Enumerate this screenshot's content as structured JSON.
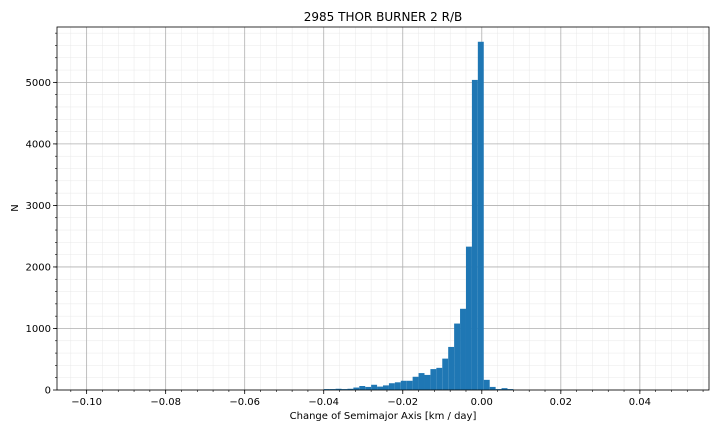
{
  "chart_data": {
    "type": "bar",
    "title": "2985 THOR BURNER 2 R/B",
    "xlabel": "Change of Semimajor Axis [km / day]",
    "ylabel": "N",
    "xlim": [
      -0.1075,
      0.0575
    ],
    "ylim": [
      0,
      5900
    ],
    "grid": true,
    "xticks": [
      -0.1,
      -0.08,
      -0.06,
      -0.04,
      -0.02,
      0.0,
      0.02,
      0.04
    ],
    "xtick_labels": [
      "−0.10",
      "−0.08",
      "−0.06",
      "−0.04",
      "−0.02",
      "0.00",
      "0.02",
      "0.04"
    ],
    "yticks": [
      0,
      1000,
      2000,
      3000,
      4000,
      5000
    ],
    "ytick_labels": [
      "0",
      "1000",
      "2000",
      "3000",
      "4000",
      "5000"
    ],
    "bin_width": 0.0015,
    "bins": [
      {
        "x0": -0.04,
        "value": 15
      },
      {
        "x0": -0.0385,
        "value": 15
      },
      {
        "x0": -0.037,
        "value": 20
      },
      {
        "x0": -0.0355,
        "value": 15
      },
      {
        "x0": -0.034,
        "value": 20
      },
      {
        "x0": -0.0325,
        "value": 40
      },
      {
        "x0": -0.031,
        "value": 65
      },
      {
        "x0": -0.0295,
        "value": 50
      },
      {
        "x0": -0.028,
        "value": 85
      },
      {
        "x0": -0.0265,
        "value": 55
      },
      {
        "x0": -0.025,
        "value": 75
      },
      {
        "x0": -0.0235,
        "value": 110
      },
      {
        "x0": -0.022,
        "value": 125
      },
      {
        "x0": -0.0205,
        "value": 150
      },
      {
        "x0": -0.019,
        "value": 150
      },
      {
        "x0": -0.0175,
        "value": 215
      },
      {
        "x0": -0.016,
        "value": 275
      },
      {
        "x0": -0.0145,
        "value": 245
      },
      {
        "x0": -0.013,
        "value": 340
      },
      {
        "x0": -0.0115,
        "value": 360
      },
      {
        "x0": -0.01,
        "value": 510
      },
      {
        "x0": -0.0085,
        "value": 700
      },
      {
        "x0": -0.007,
        "value": 1080
      },
      {
        "x0": -0.0055,
        "value": 1320
      },
      {
        "x0": -0.004,
        "value": 2330
      },
      {
        "x0": -0.0025,
        "value": 5040
      },
      {
        "x0": -0.001,
        "value": 5660
      },
      {
        "x0": 0.0005,
        "value": 165
      },
      {
        "x0": 0.002,
        "value": 50
      },
      {
        "x0": 0.0035,
        "value": 15
      },
      {
        "x0": 0.005,
        "value": 30
      },
      {
        "x0": 0.0065,
        "value": 15
      }
    ],
    "bar_color": "#1f77b4"
  }
}
